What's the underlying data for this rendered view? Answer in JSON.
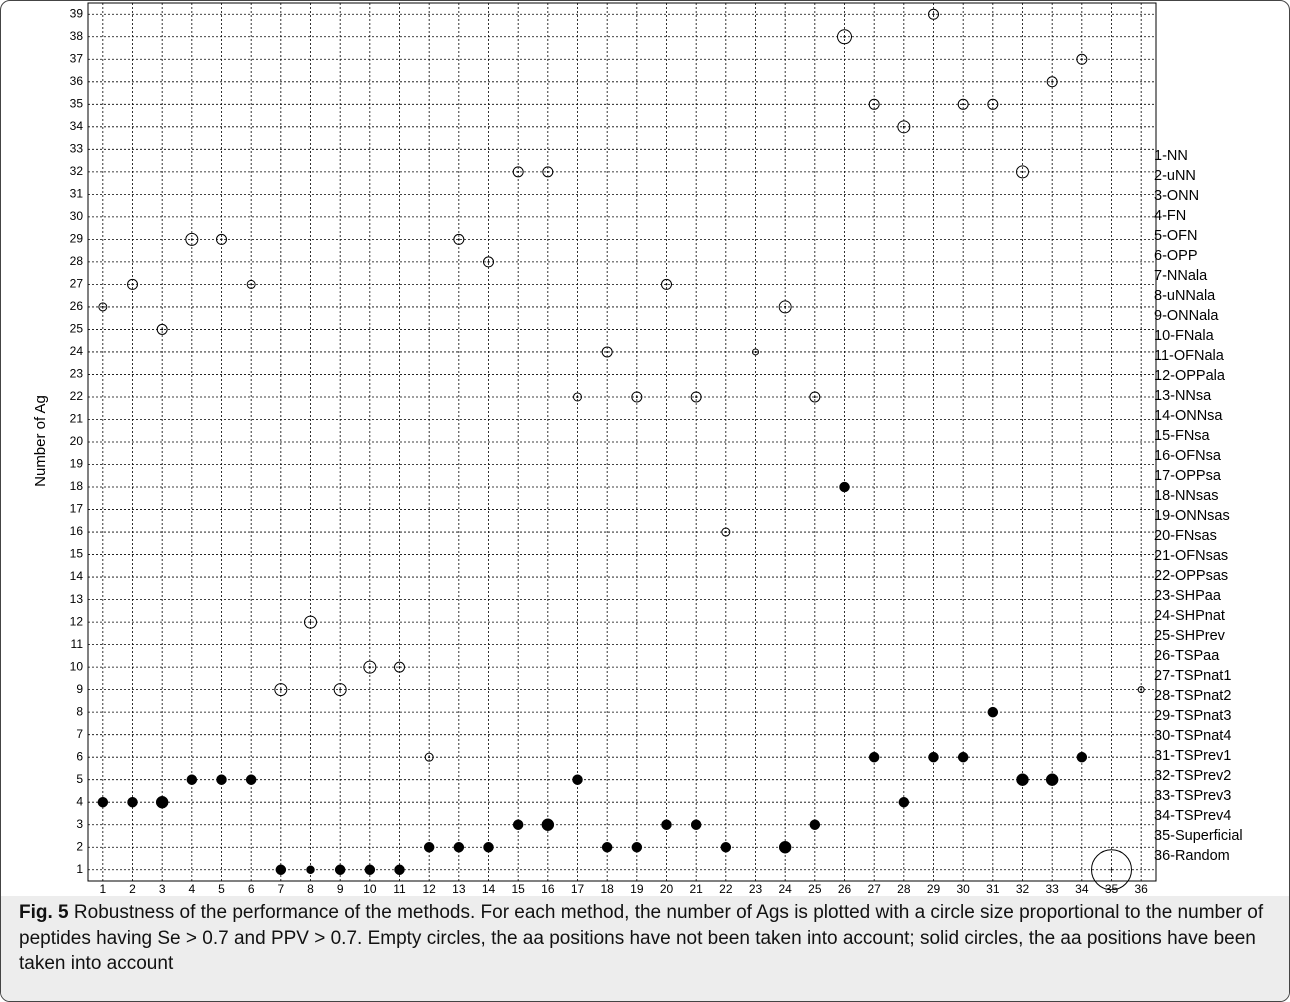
{
  "chart_data": {
    "type": "bubble",
    "y_label": "Number of Ag",
    "xlim": [
      0.5,
      36.5
    ],
    "ylim": [
      0.5,
      39.5
    ],
    "xticks": [
      1,
      2,
      3,
      4,
      5,
      6,
      7,
      8,
      9,
      10,
      11,
      12,
      13,
      14,
      15,
      16,
      17,
      18,
      19,
      20,
      21,
      22,
      23,
      24,
      25,
      26,
      27,
      28,
      29,
      30,
      31,
      32,
      33,
      34,
      35,
      36
    ],
    "yticks": [
      1,
      2,
      3,
      4,
      5,
      6,
      7,
      8,
      9,
      10,
      11,
      12,
      13,
      14,
      15,
      16,
      17,
      18,
      19,
      20,
      21,
      22,
      23,
      24,
      25,
      26,
      27,
      28,
      29,
      30,
      31,
      32,
      33,
      34,
      35,
      36,
      37,
      38,
      39
    ],
    "grid": true,
    "series": [
      {
        "marker": "open",
        "color": "#000000",
        "x": [
          1,
          2,
          3,
          4,
          5,
          6,
          7,
          8,
          9,
          10,
          11,
          12,
          13,
          14,
          15,
          16,
          17,
          18,
          19,
          20,
          21,
          22,
          23,
          24,
          25,
          26,
          27,
          28,
          29,
          30,
          31,
          32,
          33,
          34,
          35,
          36
        ],
        "values": [
          26,
          27,
          25,
          29,
          29,
          27,
          9,
          12,
          9,
          10,
          10,
          6,
          29,
          28,
          32,
          32,
          22,
          24,
          22,
          27,
          22,
          16,
          24,
          26,
          22,
          38,
          35,
          34,
          39,
          35,
          35,
          32,
          36,
          37,
          1,
          9
        ],
        "sizes": [
          2,
          2.5,
          2.5,
          3,
          2.5,
          2,
          3,
          3,
          3,
          3,
          2.5,
          2,
          2.5,
          2.5,
          2.5,
          2.5,
          2,
          2.5,
          2.5,
          2.5,
          2.5,
          2,
          1.5,
          3,
          2.5,
          3.5,
          2.5,
          3,
          2.5,
          2.5,
          2.5,
          3,
          2.5,
          2.5,
          10,
          1.5
        ]
      },
      {
        "marker": "filled",
        "color": "#000000",
        "x": [
          1,
          2,
          3,
          4,
          5,
          6,
          7,
          8,
          9,
          10,
          11,
          12,
          13,
          14,
          15,
          16,
          17,
          18,
          19,
          20,
          21,
          22,
          24,
          25,
          26,
          27,
          28,
          29,
          30,
          31,
          32,
          33,
          34
        ],
        "values": [
          4,
          4,
          4,
          5,
          5,
          5,
          1,
          1,
          1,
          1,
          1,
          2,
          2,
          2,
          3,
          3,
          5,
          2,
          2,
          3,
          3,
          2,
          2,
          3,
          18,
          6,
          4,
          6,
          6,
          8,
          5,
          5,
          6
        ],
        "sizes": [
          2.5,
          2.5,
          3,
          2.5,
          2.5,
          2.5,
          2.5,
          2,
          2.5,
          2.5,
          2.5,
          2.5,
          2.5,
          2.5,
          2.5,
          3,
          2.5,
          2.5,
          2.5,
          2.5,
          2.5,
          2.5,
          3,
          2.5,
          2.5,
          2.5,
          2.5,
          2.5,
          2.5,
          2.5,
          3,
          3,
          2.5
        ]
      }
    ],
    "method_labels": [
      "1-NN",
      "2-uNN",
      "3-ONN",
      "4-FN",
      "5-OFN",
      "6-OPP",
      "7-NNala",
      "8-uNNala",
      "9-ONNala",
      "10-FNala",
      "11-OFNala",
      "12-OPPala",
      "13-NNsa",
      "14-ONNsa",
      "15-FNsa",
      "16-OFNsa",
      "17-OPPsa",
      "18-NNsas",
      "19-ONNsas",
      "20-FNsas",
      "21-OFNsas",
      "22-OPPsas",
      "23-SHPaa",
      "24-SHPnat",
      "25-SHPrev",
      "26-TSPaa",
      "27-TSPnat1",
      "28-TSPnat2",
      "29-TSPnat3",
      "30-TSPnat4",
      "31-TSPrev1",
      "32-TSPrev2",
      "33-TSPrev3",
      "34-TSPrev4",
      "35-Superficial",
      "36-Random"
    ],
    "caption": {
      "label": "Fig. 5",
      "text": "Robustness of the performance of the methods. For each method, the number of Ags is plotted with a circle size proportional to the number of peptides having Se > 0.7 and PPV > 0.7. Empty circles, the aa positions have not been taken into account; solid circles, the aa positions have been taken into account"
    }
  }
}
